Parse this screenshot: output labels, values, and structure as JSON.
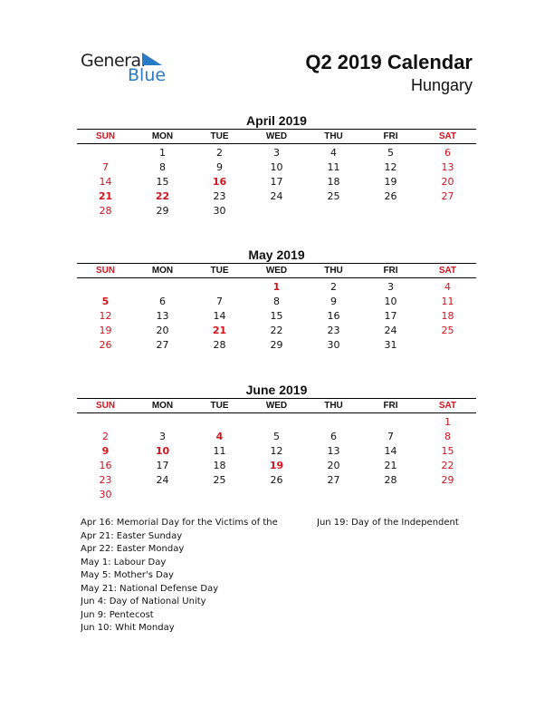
{
  "logo": {
    "word1": "General",
    "word2": "Blue",
    "accent": "#2a7bc4"
  },
  "title": "Q2 2019 Calendar",
  "country": "Hungary",
  "colors": {
    "weekend": "#d0141e"
  },
  "weekdays": [
    "SUN",
    "MON",
    "TUE",
    "WED",
    "THU",
    "FRI",
    "SAT"
  ],
  "months": [
    {
      "title": "April 2019",
      "weeks": [
        [
          "",
          1,
          2,
          3,
          4,
          5,
          6
        ],
        [
          7,
          8,
          9,
          10,
          11,
          12,
          13
        ],
        [
          14,
          15,
          16,
          17,
          18,
          19,
          20
        ],
        [
          21,
          22,
          23,
          24,
          25,
          26,
          27
        ],
        [
          28,
          29,
          30,
          "",
          "",
          "",
          ""
        ]
      ],
      "holidays": [
        16,
        21,
        22
      ]
    },
    {
      "title": "May 2019",
      "weeks": [
        [
          "",
          "",
          "",
          1,
          2,
          3,
          4
        ],
        [
          5,
          6,
          7,
          8,
          9,
          10,
          11
        ],
        [
          12,
          13,
          14,
          15,
          16,
          17,
          18
        ],
        [
          19,
          20,
          21,
          22,
          23,
          24,
          25
        ],
        [
          26,
          27,
          28,
          29,
          30,
          31,
          ""
        ]
      ],
      "holidays": [
        1,
        5,
        21
      ]
    },
    {
      "title": "June 2019",
      "weeks": [
        [
          "",
          "",
          "",
          "",
          "",
          "",
          1
        ],
        [
          2,
          3,
          4,
          5,
          6,
          7,
          8
        ],
        [
          9,
          10,
          11,
          12,
          13,
          14,
          15
        ],
        [
          16,
          17,
          18,
          19,
          20,
          21,
          22
        ],
        [
          23,
          24,
          25,
          26,
          27,
          28,
          29
        ],
        [
          30,
          "",
          "",
          "",
          "",
          "",
          ""
        ]
      ],
      "holidays": [
        4,
        9,
        10,
        19
      ]
    }
  ],
  "holidays_left": [
    "Apr 16: Memorial Day for the Victims of the",
    "Apr 21: Easter Sunday",
    "Apr 22: Easter Monday",
    "May 1: Labour Day",
    "May 5: Mother's Day",
    "May 21: National Defense Day",
    "Jun 4: Day of National Unity",
    "Jun 9: Pentecost",
    "Jun 10: Whit Monday"
  ],
  "holidays_right": [
    "Jun 19: Day of the Independent"
  ]
}
